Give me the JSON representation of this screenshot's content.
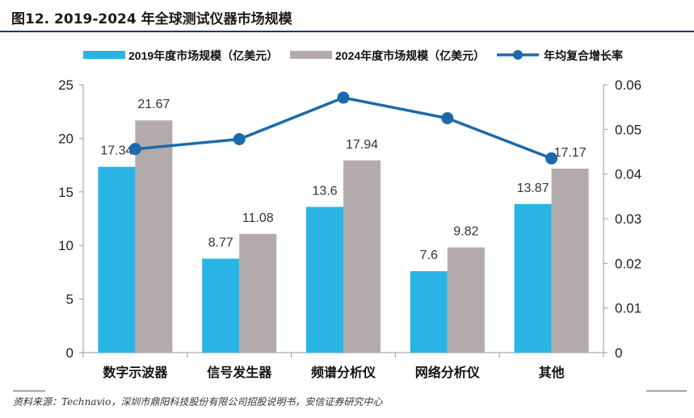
{
  "figure": {
    "title": "图12. 2019-2024 年全球测试仪器市场规模",
    "source": "资料来源：Technavio，深圳市鼎阳科技股份有限公司招股说明书，安信证券研究中心"
  },
  "chart_data": {
    "type": "bar",
    "categories": [
      "数字示波器",
      "信号发生器",
      "频谱分析仪",
      "网络分析仪",
      "其他"
    ],
    "series": [
      {
        "name": "2019年度市场规模（亿美元）",
        "kind": "bar",
        "axis": "left",
        "color": "#2ab4e6",
        "values": [
          17.34,
          8.77,
          13.6,
          7.6,
          13.87
        ],
        "labels": [
          "17.34",
          "8.77",
          "13.6",
          "7.6",
          "13.87"
        ]
      },
      {
        "name": "2024年度市场规模（亿美元）",
        "kind": "bar",
        "axis": "left",
        "color": "#b3abab",
        "values": [
          21.67,
          11.08,
          17.94,
          9.82,
          17.17
        ],
        "labels": [
          "21.67",
          "11.08",
          "17.94",
          "9.82",
          "17.17"
        ]
      },
      {
        "name": "年均复合增长率",
        "kind": "line",
        "axis": "right",
        "color": "#1b6aab",
        "values": [
          0.0456,
          0.0478,
          0.0571,
          0.0525,
          0.0435
        ]
      }
    ],
    "y_left": {
      "min": 0,
      "max": 25,
      "ticks": [
        "0",
        "5",
        "10",
        "15",
        "20",
        "25"
      ]
    },
    "y_right": {
      "min": 0,
      "max": 0.06,
      "ticks": [
        "0",
        "0.01",
        "0.02",
        "0.03",
        "0.04",
        "0.05",
        "0.06"
      ]
    },
    "legend_position": "top"
  }
}
